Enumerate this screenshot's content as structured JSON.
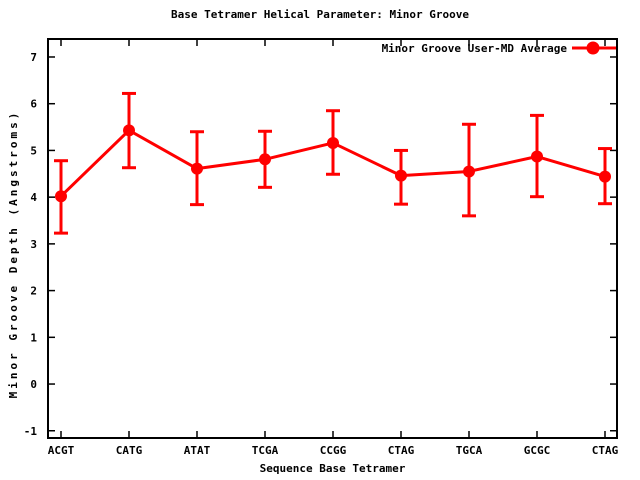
{
  "window": {
    "background": "#ffffff"
  },
  "chart_data": {
    "type": "line",
    "title": "Base Tetramer Helical Parameter: Minor Groove",
    "xlabel": "Sequence Base Tetramer",
    "ylabel": "Minor Groove Depth (Angstroms)",
    "categories": [
      "ACGT",
      "CATG",
      "ATAT",
      "TCGA",
      "CCGG",
      "CTAG",
      "TGCA",
      "GCGC",
      "CTAG"
    ],
    "series": [
      {
        "name": "Minor Groove User-MD Average",
        "values": [
          4.02,
          5.43,
          4.61,
          4.81,
          5.16,
          4.46,
          4.55,
          4.87,
          4.44
        ],
        "err_low": [
          3.23,
          4.63,
          3.84,
          4.21,
          4.49,
          3.85,
          3.6,
          4.01,
          3.86
        ],
        "err_high": [
          4.78,
          6.22,
          5.4,
          5.41,
          5.85,
          5.0,
          5.56,
          5.75,
          5.04
        ],
        "color": "#ff0000",
        "marker": "filled-circle"
      }
    ],
    "yticks": [
      -1,
      0,
      1,
      2,
      3,
      4,
      5,
      6,
      7
    ],
    "ylim": [
      -1.155,
      7.385
    ],
    "grid": false,
    "legend_position": "top-right-inside",
    "axis_color": "#000000",
    "text_color": "#000000"
  }
}
